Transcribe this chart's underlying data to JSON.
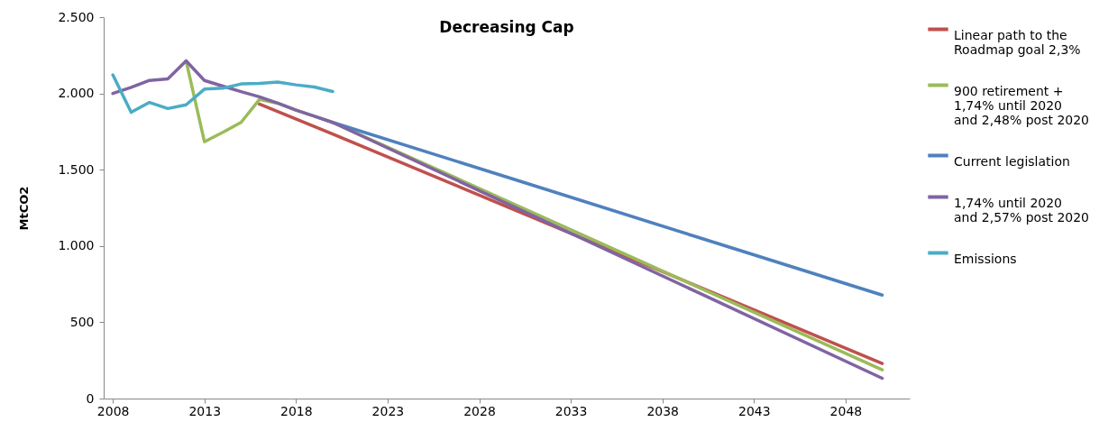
{
  "chart_data": {
    "type": "line",
    "title": "Decreasing Cap",
    "ylabel": "MtCO2",
    "xlim": [
      2007.5,
      2051.5
    ],
    "xticks": [
      2008,
      2013,
      2018,
      2023,
      2028,
      2033,
      2038,
      2043,
      2048
    ],
    "ylim": [
      0,
      2500
    ],
    "yticks": [
      0,
      {
        "value": 500,
        "label": "500"
      },
      {
        "value": 1000,
        "label": "1.000"
      },
      {
        "value": 1500,
        "label": "1.500"
      },
      {
        "value": 2000,
        "label": "2.000"
      },
      {
        "value": 2500,
        "label": "2.500"
      }
    ],
    "grid": false,
    "legend": "right",
    "series": [
      {
        "name": "Linear path to the Roadmap goal 2,3%",
        "color": "#c0504d",
        "x": [
          2016,
          2020,
          2030,
          2040,
          2050
        ],
        "values": [
          1930,
          1734,
          1233,
          732,
          230
        ]
      },
      {
        "name": "900 retirement + 1,74% until 2020 and 2,48% post 2020",
        "color": "#9bbb59",
        "x": [
          2012,
          2013,
          2014,
          2015,
          2016,
          2017,
          2018,
          2019,
          2020,
          2030,
          2040,
          2050
        ],
        "values": [
          2213,
          1683,
          1745,
          1810,
          1960,
          1936,
          1891,
          1851,
          1810,
          1269,
          728,
          188
        ]
      },
      {
        "name": "Current legislation",
        "color": "#4f81bd",
        "x": [
          2020,
          2030,
          2040,
          2050
        ],
        "values": [
          1810,
          1433,
          1055,
          678
        ]
      },
      {
        "name": "1,74% until 2020 and 2,57% post 2020",
        "color": "#8064a2",
        "x": [
          2008,
          2009,
          2010,
          2011,
          2012,
          2013,
          2014,
          2015,
          2016,
          2017,
          2018,
          2019,
          2020,
          2030,
          2040,
          2050
        ],
        "values": [
          2000,
          2040,
          2085,
          2095,
          2213,
          2085,
          2048,
          2012,
          1978,
          1936,
          1891,
          1851,
          1810,
          1251,
          692,
          133
        ]
      },
      {
        "name": "Emissions",
        "color": "#4bacc6",
        "x": [
          2008,
          2009,
          2010,
          2011,
          2012,
          2013,
          2014,
          2015,
          2016,
          2017,
          2018,
          2019,
          2020
        ],
        "values": [
          2122,
          1876,
          1941,
          1901,
          1925,
          2028,
          2034,
          2062,
          2066,
          2074,
          2056,
          2042,
          2012
        ]
      }
    ]
  }
}
